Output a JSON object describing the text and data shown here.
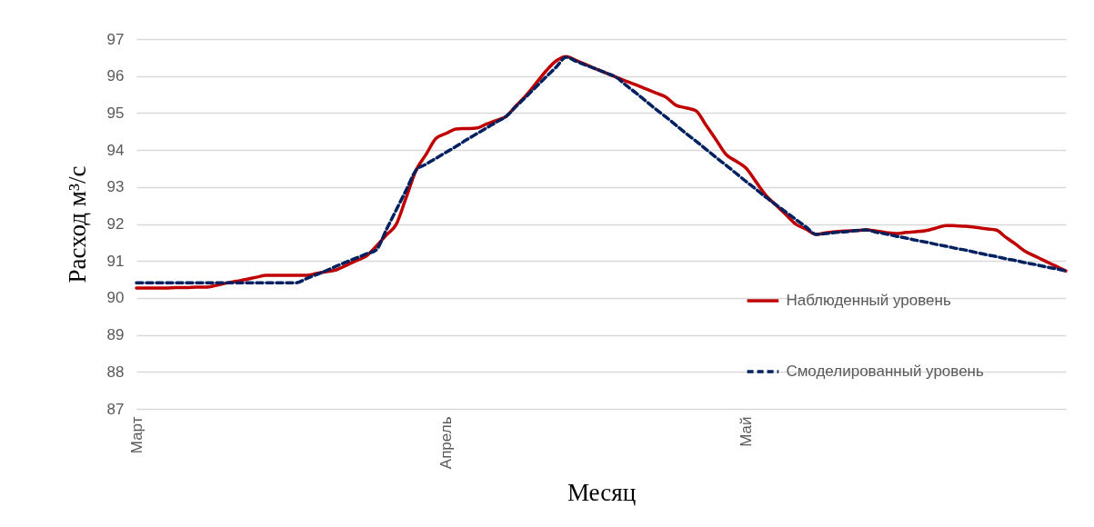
{
  "chart_data": {
    "type": "line",
    "xlabel": "Месяц",
    "ylabel": "Расход м³/с",
    "categories": [
      "Март",
      null,
      null,
      null,
      null,
      null,
      null,
      null,
      null,
      null,
      null,
      null,
      null,
      null,
      null,
      null,
      null,
      null,
      null,
      null,
      null,
      null,
      null,
      null,
      null,
      null,
      null,
      null,
      null,
      null,
      null,
      "Апрель",
      null,
      null,
      null,
      null,
      null,
      null,
      null,
      null,
      null,
      null,
      null,
      null,
      null,
      null,
      null,
      null,
      null,
      null,
      null,
      null,
      null,
      null,
      null,
      null,
      null,
      null,
      null,
      null,
      null,
      "Май",
      null,
      null,
      null,
      null,
      null,
      null,
      null,
      null,
      null,
      null,
      null,
      null,
      null,
      null,
      null,
      null,
      null,
      null,
      null,
      null,
      null,
      null,
      null,
      null,
      null,
      null,
      null,
      null,
      null,
      null,
      null,
      null
    ],
    "ylim": [
      87,
      97
    ],
    "yticks": [
      87,
      88,
      89,
      90,
      91,
      92,
      93,
      94,
      95,
      96,
      97
    ],
    "grid": "y",
    "legend": "right",
    "series": [
      {
        "name": "Наблюденный уровень",
        "color": "#c00000",
        "line_style": "solid",
        "values": [
          90.27,
          90.27,
          90.27,
          90.27,
          90.28,
          90.28,
          90.29,
          90.29,
          90.34,
          90.4,
          90.45,
          90.5,
          90.56,
          90.61,
          90.61,
          90.61,
          90.61,
          90.61,
          90.66,
          90.71,
          90.76,
          90.88,
          91.01,
          91.13,
          91.4,
          91.7,
          91.99,
          92.72,
          93.46,
          93.89,
          94.32,
          94.45,
          94.57,
          94.58,
          94.59,
          94.7,
          94.8,
          94.91,
          95.2,
          95.48,
          95.81,
          96.14,
          96.41,
          96.53,
          96.42,
          96.31,
          96.19,
          96.08,
          95.97,
          95.86,
          95.76,
          95.65,
          95.54,
          95.43,
          95.21,
          95.14,
          95.06,
          94.67,
          94.28,
          93.88,
          93.7,
          93.51,
          93.14,
          92.77,
          92.51,
          92.25,
          91.99,
          91.86,
          91.72,
          91.76,
          91.79,
          91.81,
          91.82,
          91.84,
          91.81,
          91.77,
          91.74,
          91.77,
          91.79,
          91.82,
          91.89,
          91.96,
          91.95,
          91.94,
          91.91,
          91.87,
          91.84,
          91.64,
          91.45,
          91.25,
          91.12,
          90.99,
          90.86,
          90.73
        ]
      },
      {
        "name": "Смоделированный уровень",
        "color": "#002060",
        "line_style": "dashed",
        "values": [
          90.41,
          90.41,
          90.41,
          90.41,
          90.41,
          90.41,
          90.41,
          90.41,
          90.41,
          90.41,
          90.41,
          90.41,
          90.41,
          90.41,
          90.41,
          90.41,
          90.41,
          90.52,
          90.63,
          90.74,
          90.86,
          90.97,
          91.08,
          91.19,
          91.3,
          91.84,
          92.38,
          92.92,
          93.46,
          93.62,
          93.78,
          93.94,
          94.1,
          94.27,
          94.43,
          94.59,
          94.75,
          94.91,
          95.18,
          95.44,
          95.71,
          95.98,
          96.24,
          96.51,
          96.4,
          96.29,
          96.19,
          96.08,
          95.97,
          95.75,
          95.54,
          95.32,
          95.1,
          94.89,
          94.67,
          94.45,
          94.24,
          94.02,
          93.8,
          93.59,
          93.37,
          93.15,
          92.94,
          92.72,
          92.52,
          92.32,
          92.12,
          91.92,
          91.72,
          91.74,
          91.77,
          91.79,
          91.82,
          91.84,
          91.78,
          91.73,
          91.67,
          91.62,
          91.56,
          91.51,
          91.45,
          91.4,
          91.34,
          91.29,
          91.23,
          91.17,
          91.12,
          91.06,
          91.01,
          90.95,
          90.9,
          90.84,
          90.79,
          90.73
        ]
      }
    ]
  }
}
